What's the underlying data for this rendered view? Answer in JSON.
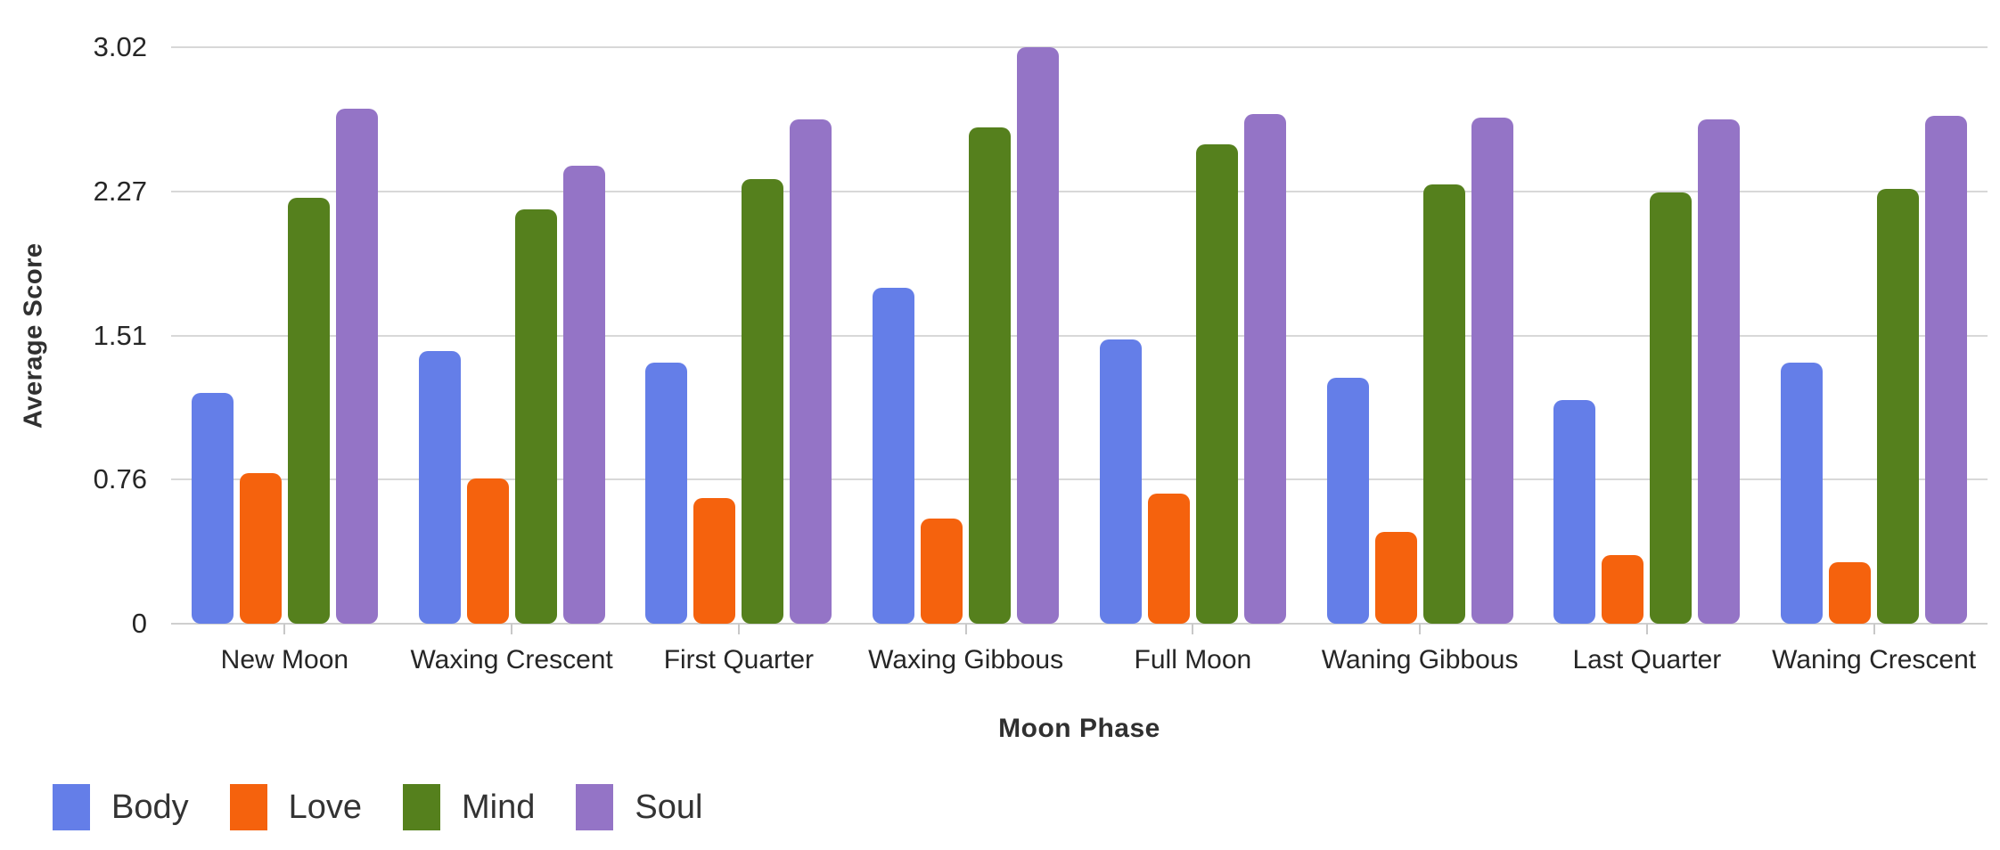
{
  "chart_data": {
    "type": "bar",
    "title": "",
    "xlabel": "Moon Phase",
    "ylabel": "Average Score",
    "ylim": [
      0,
      3.02
    ],
    "yticks": [
      0,
      0.755,
      1.51,
      2.265,
      3.02
    ],
    "ytick_labels": [
      "0",
      "0.76",
      "1.51",
      "2.27",
      "3.02"
    ],
    "grid": "horizontal",
    "grid_color": "#D8D8D8",
    "legend_position": "bottom-left",
    "background": "#FFFFFF",
    "categories": [
      "New Moon",
      "Waxing Crescent",
      "First Quarter",
      "Waxing Gibbous",
      "Full Moon",
      "Waning Gibbous",
      "Last Quarter",
      "Waning Crescent"
    ],
    "series": [
      {
        "name": "Body",
        "color": "#647EE8",
        "values": [
          1.21,
          1.43,
          1.37,
          1.76,
          1.49,
          1.29,
          1.17,
          1.37
        ]
      },
      {
        "name": "Love",
        "color": "#F5620D",
        "values": [
          0.79,
          0.76,
          0.66,
          0.55,
          0.68,
          0.48,
          0.36,
          0.32
        ]
      },
      {
        "name": "Mind",
        "color": "#55801D",
        "values": [
          2.23,
          2.17,
          2.33,
          2.6,
          2.51,
          2.3,
          2.26,
          2.28
        ]
      },
      {
        "name": "Soul",
        "color": "#9474C6",
        "values": [
          2.7,
          2.4,
          2.64,
          3.02,
          2.67,
          2.65,
          2.64,
          2.66
        ]
      }
    ]
  },
  "colors": {
    "axis_text": "#262626",
    "axis_title_text": "#303030",
    "legend_text": "#333333",
    "grid": "#D8D8D8",
    "tick_mark": "#C8C8C8"
  }
}
